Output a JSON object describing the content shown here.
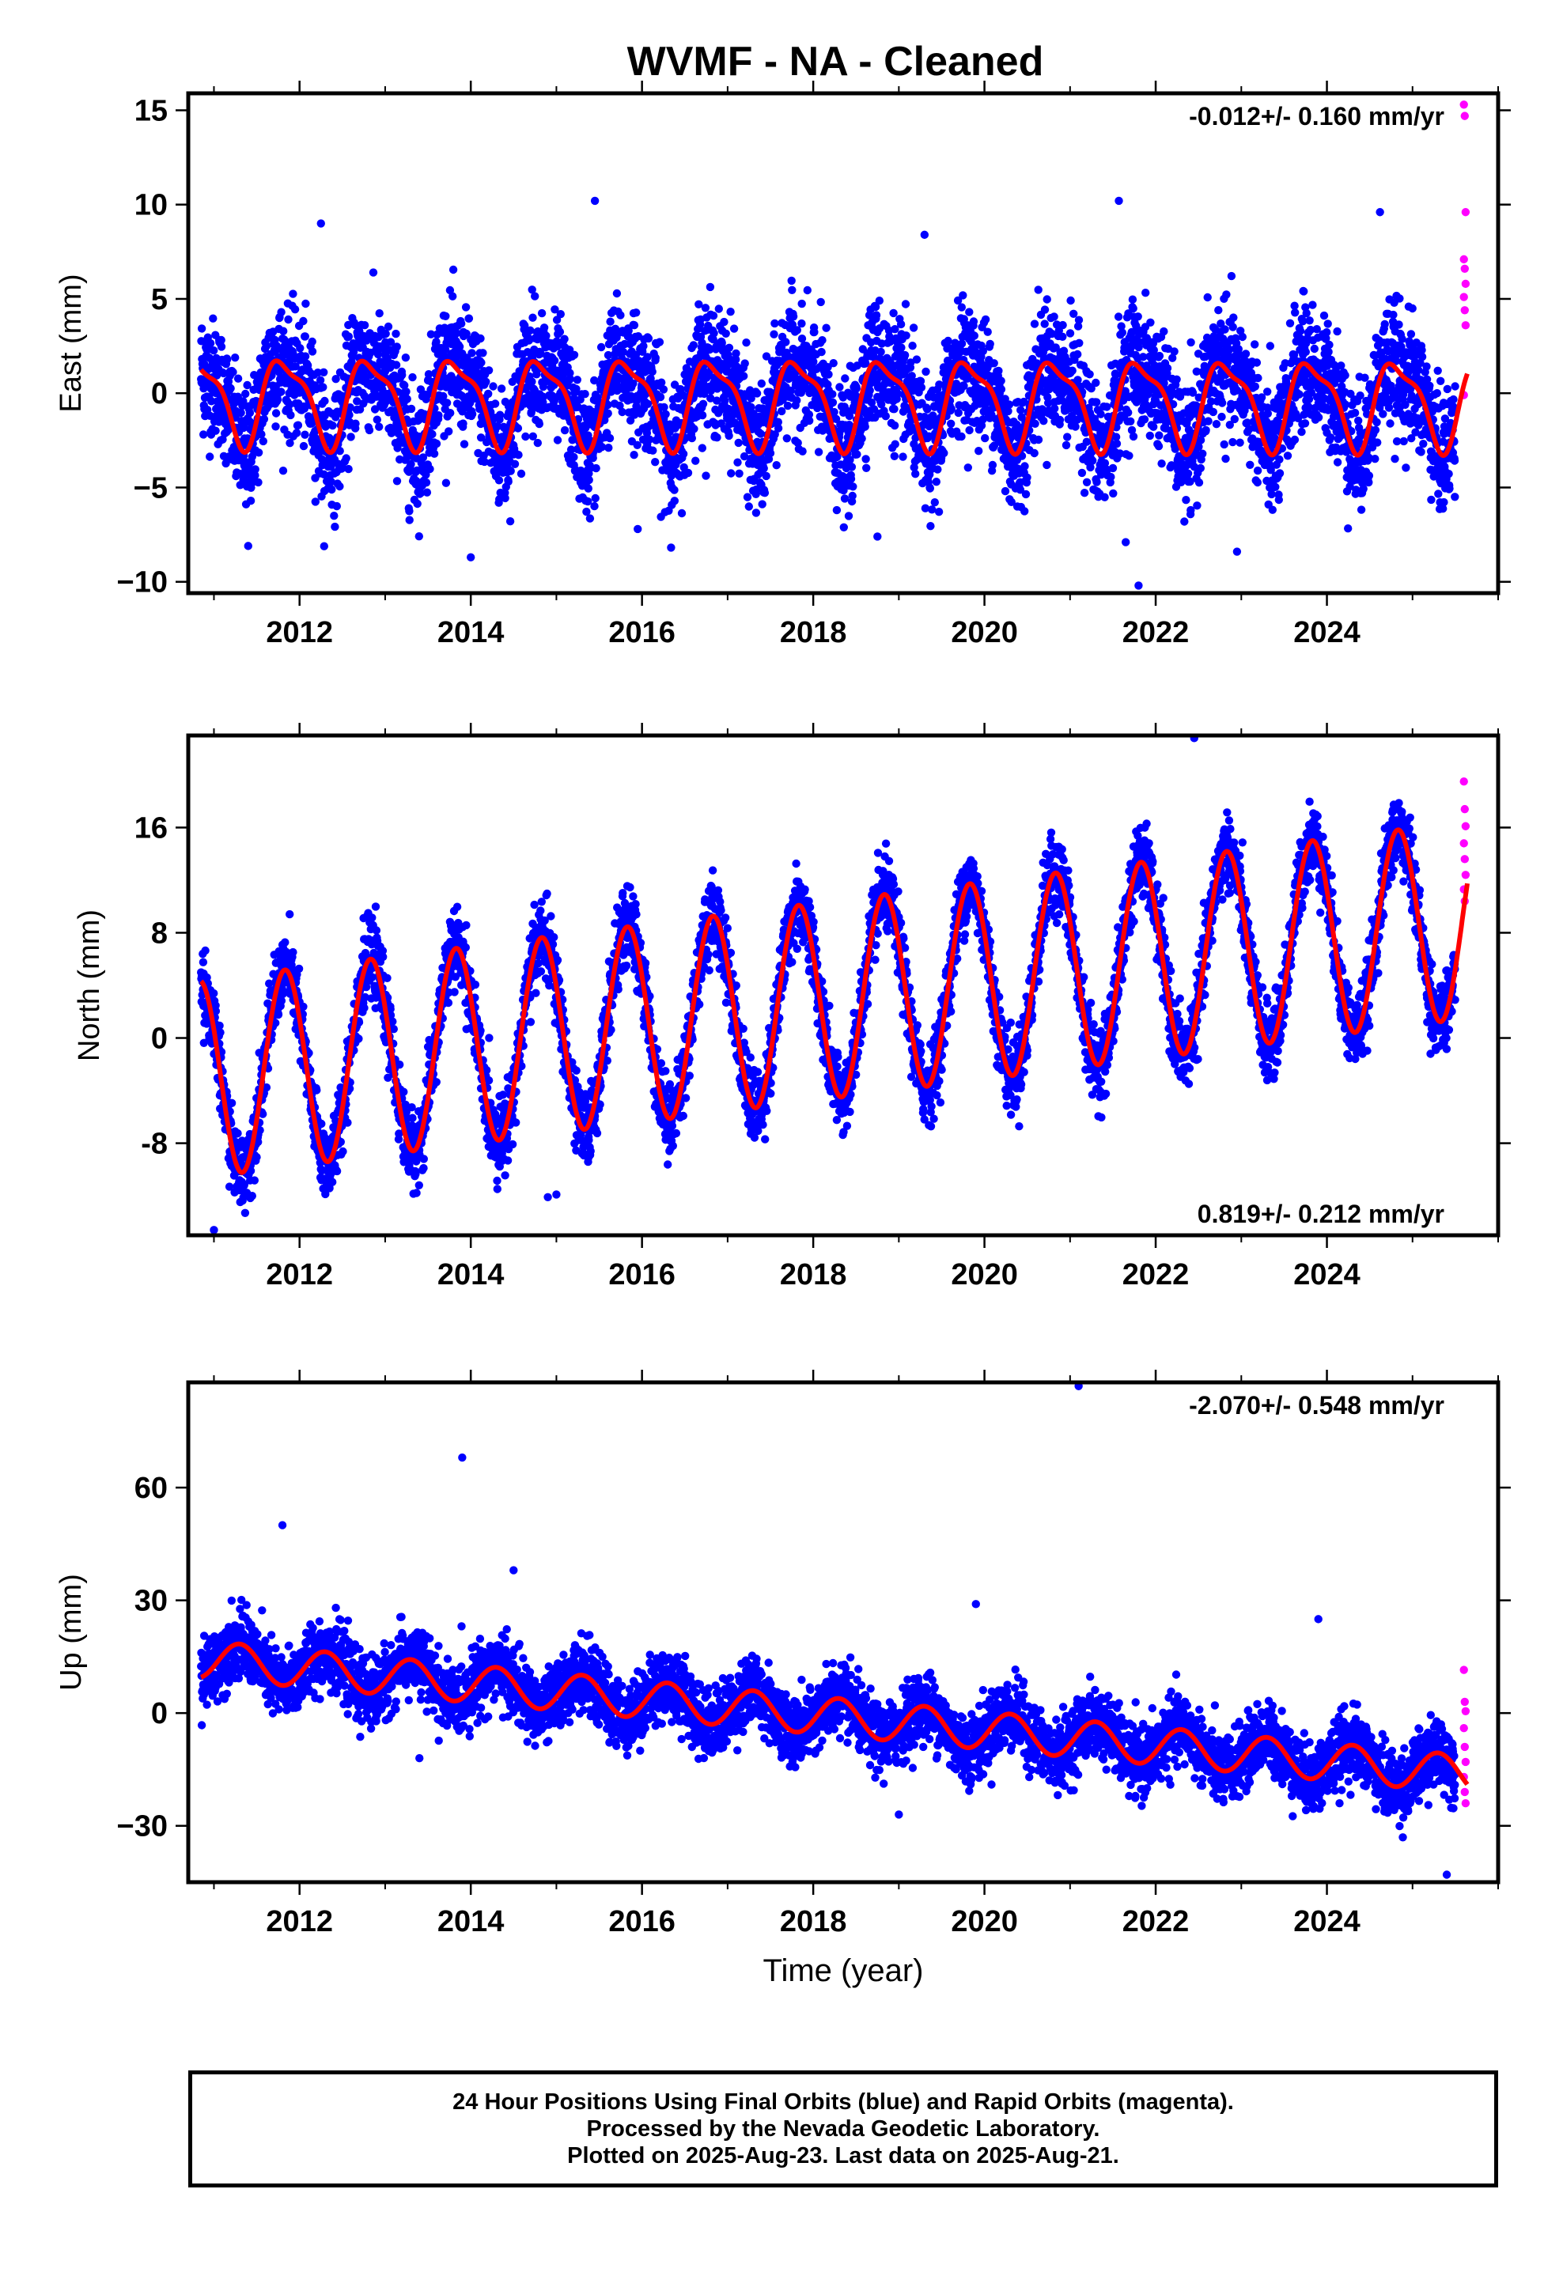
{
  "title": "WVMF  - NA - Cleaned",
  "xlabel": "Time (year)",
  "footer": {
    "line1": "24 Hour Positions Using Final Orbits (blue) and Rapid Orbits (magenta).",
    "line2": "Processed by the Nevada Geodetic Laboratory.",
    "line3": "Plotted on 2025-Aug-23. Last data on 2025-Aug-21."
  },
  "colors": {
    "final": "#0000ff",
    "rapid": "#ff00ff",
    "model": "#ff0000"
  },
  "chart_data": [
    {
      "type": "scatter",
      "id": "east",
      "ylabel": "East (mm)",
      "rate_text": "-0.012+/- 0.160 mm/yr",
      "rate_position": "top-right",
      "xlim": [
        2010.7,
        2026.0
      ],
      "ylim": [
        -10.6,
        15.9
      ],
      "xticks": [
        2012,
        2014,
        2016,
        2018,
        2020,
        2022,
        2024
      ],
      "yticks": [
        -10,
        -5,
        0,
        5,
        10,
        15
      ],
      "ytick_labels": [
        "−10",
        "−5",
        "0",
        "5",
        "10",
        "15"
      ],
      "start": 2010.85,
      "end_final": 2025.5,
      "end": 2025.64,
      "model": {
        "mean0": -0.3,
        "trend": -0.012,
        "a1": 2.2,
        "a2": 0.7,
        "phase": 0.58,
        "amp_growth": 0
      },
      "noise": 1.6,
      "outliers": [
        [
          2012.25,
          9.0
        ],
        [
          2015.45,
          10.2
        ],
        [
          2019.3,
          8.4
        ],
        [
          2021.57,
          10.2
        ],
        [
          2024.62,
          9.6
        ],
        [
          2014.0,
          -8.7
        ],
        [
          2011.4,
          -8.1
        ],
        [
          2021.8,
          -10.2
        ],
        [
          2022.95,
          -8.4
        ],
        [
          2018.75,
          -7.6
        ],
        [
          2021.65,
          -7.9
        ],
        [
          2015.95,
          -7.2
        ]
      ],
      "rapid": [
        [
          2025.6,
          15.3
        ],
        [
          2025.61,
          14.7
        ],
        [
          2025.62,
          9.6
        ],
        [
          2025.6,
          7.1
        ],
        [
          2025.61,
          6.6
        ],
        [
          2025.62,
          5.8
        ],
        [
          2025.6,
          5.1
        ],
        [
          2025.61,
          4.4
        ],
        [
          2025.62,
          3.6
        ],
        [
          2025.6,
          -0.1
        ]
      ]
    },
    {
      "type": "scatter",
      "id": "north",
      "ylabel": "North (mm)",
      "rate_text": "0.819+/- 0.212 mm/yr",
      "rate_position": "bottom-right",
      "xlim": [
        2010.7,
        2026.0
      ],
      "ylim": [
        -15.0,
        23.0
      ],
      "xticks": [
        2012,
        2014,
        2016,
        2018,
        2020,
        2022,
        2024
      ],
      "yticks": [
        -8,
        0,
        8,
        16
      ],
      "ytick_labels": [
        "-8",
        "0",
        "8",
        "16"
      ],
      "start": 2010.85,
      "end_final": 2025.5,
      "end": 2025.64,
      "model": {
        "mean0": -3.0,
        "trend": 0.819,
        "a1": 7.5,
        "a2": 0.0,
        "phase": 0.58,
        "amp_growth": 0
      },
      "noise": 1.4,
      "outliers": [
        [
          2022.45,
          22.8
        ],
        [
          2015.0,
          -11.9
        ],
        [
          2014.9,
          -12.1
        ],
        [
          2011.0,
          -14.6
        ]
      ],
      "rapid": [
        [
          2025.6,
          19.5
        ],
        [
          2025.61,
          17.4
        ],
        [
          2025.62,
          16.1
        ],
        [
          2025.6,
          14.8
        ],
        [
          2025.61,
          13.6
        ],
        [
          2025.62,
          12.4
        ],
        [
          2025.6,
          11.3
        ],
        [
          2025.61,
          10.4
        ]
      ]
    },
    {
      "type": "scatter",
      "id": "up",
      "ylabel": "Up (mm)",
      "rate_text": "-2.070+/- 0.548 mm/yr",
      "rate_position": "top-right",
      "xlim": [
        2010.7,
        2026.0
      ],
      "ylim": [
        -45.0,
        88.0
      ],
      "xticks": [
        2012,
        2014,
        2016,
        2018,
        2020,
        2022,
        2024
      ],
      "yticks": [
        -30,
        0,
        30,
        60
      ],
      "ytick_labels": [
        "−30",
        "0",
        "30",
        "60"
      ],
      "start": 2010.85,
      "end_final": 2025.5,
      "end": 2025.64,
      "model": {
        "mean0": 14.0,
        "trend": -2.07,
        "a1": 5.0,
        "a2": 0.0,
        "phase": 0.05,
        "amp_growth": 0
      },
      "noise": 4.5,
      "outliers": [
        [
          2011.8,
          50.0
        ],
        [
          2013.9,
          68.0
        ],
        [
          2021.1,
          87.0
        ],
        [
          2014.5,
          38.0
        ],
        [
          2013.4,
          -12.0
        ],
        [
          2025.4,
          -43.0
        ],
        [
          2019.0,
          -27.0
        ],
        [
          2019.9,
          29.0
        ],
        [
          2023.9,
          25.0
        ]
      ],
      "rapid": [
        [
          2025.6,
          11.5
        ],
        [
          2025.61,
          3.0
        ],
        [
          2025.62,
          0.5
        ],
        [
          2025.6,
          -4.0
        ],
        [
          2025.61,
          -9.0
        ],
        [
          2025.62,
          -13.0
        ],
        [
          2025.6,
          -17.0
        ],
        [
          2025.61,
          -21.0
        ],
        [
          2025.62,
          -24.0
        ]
      ]
    }
  ]
}
